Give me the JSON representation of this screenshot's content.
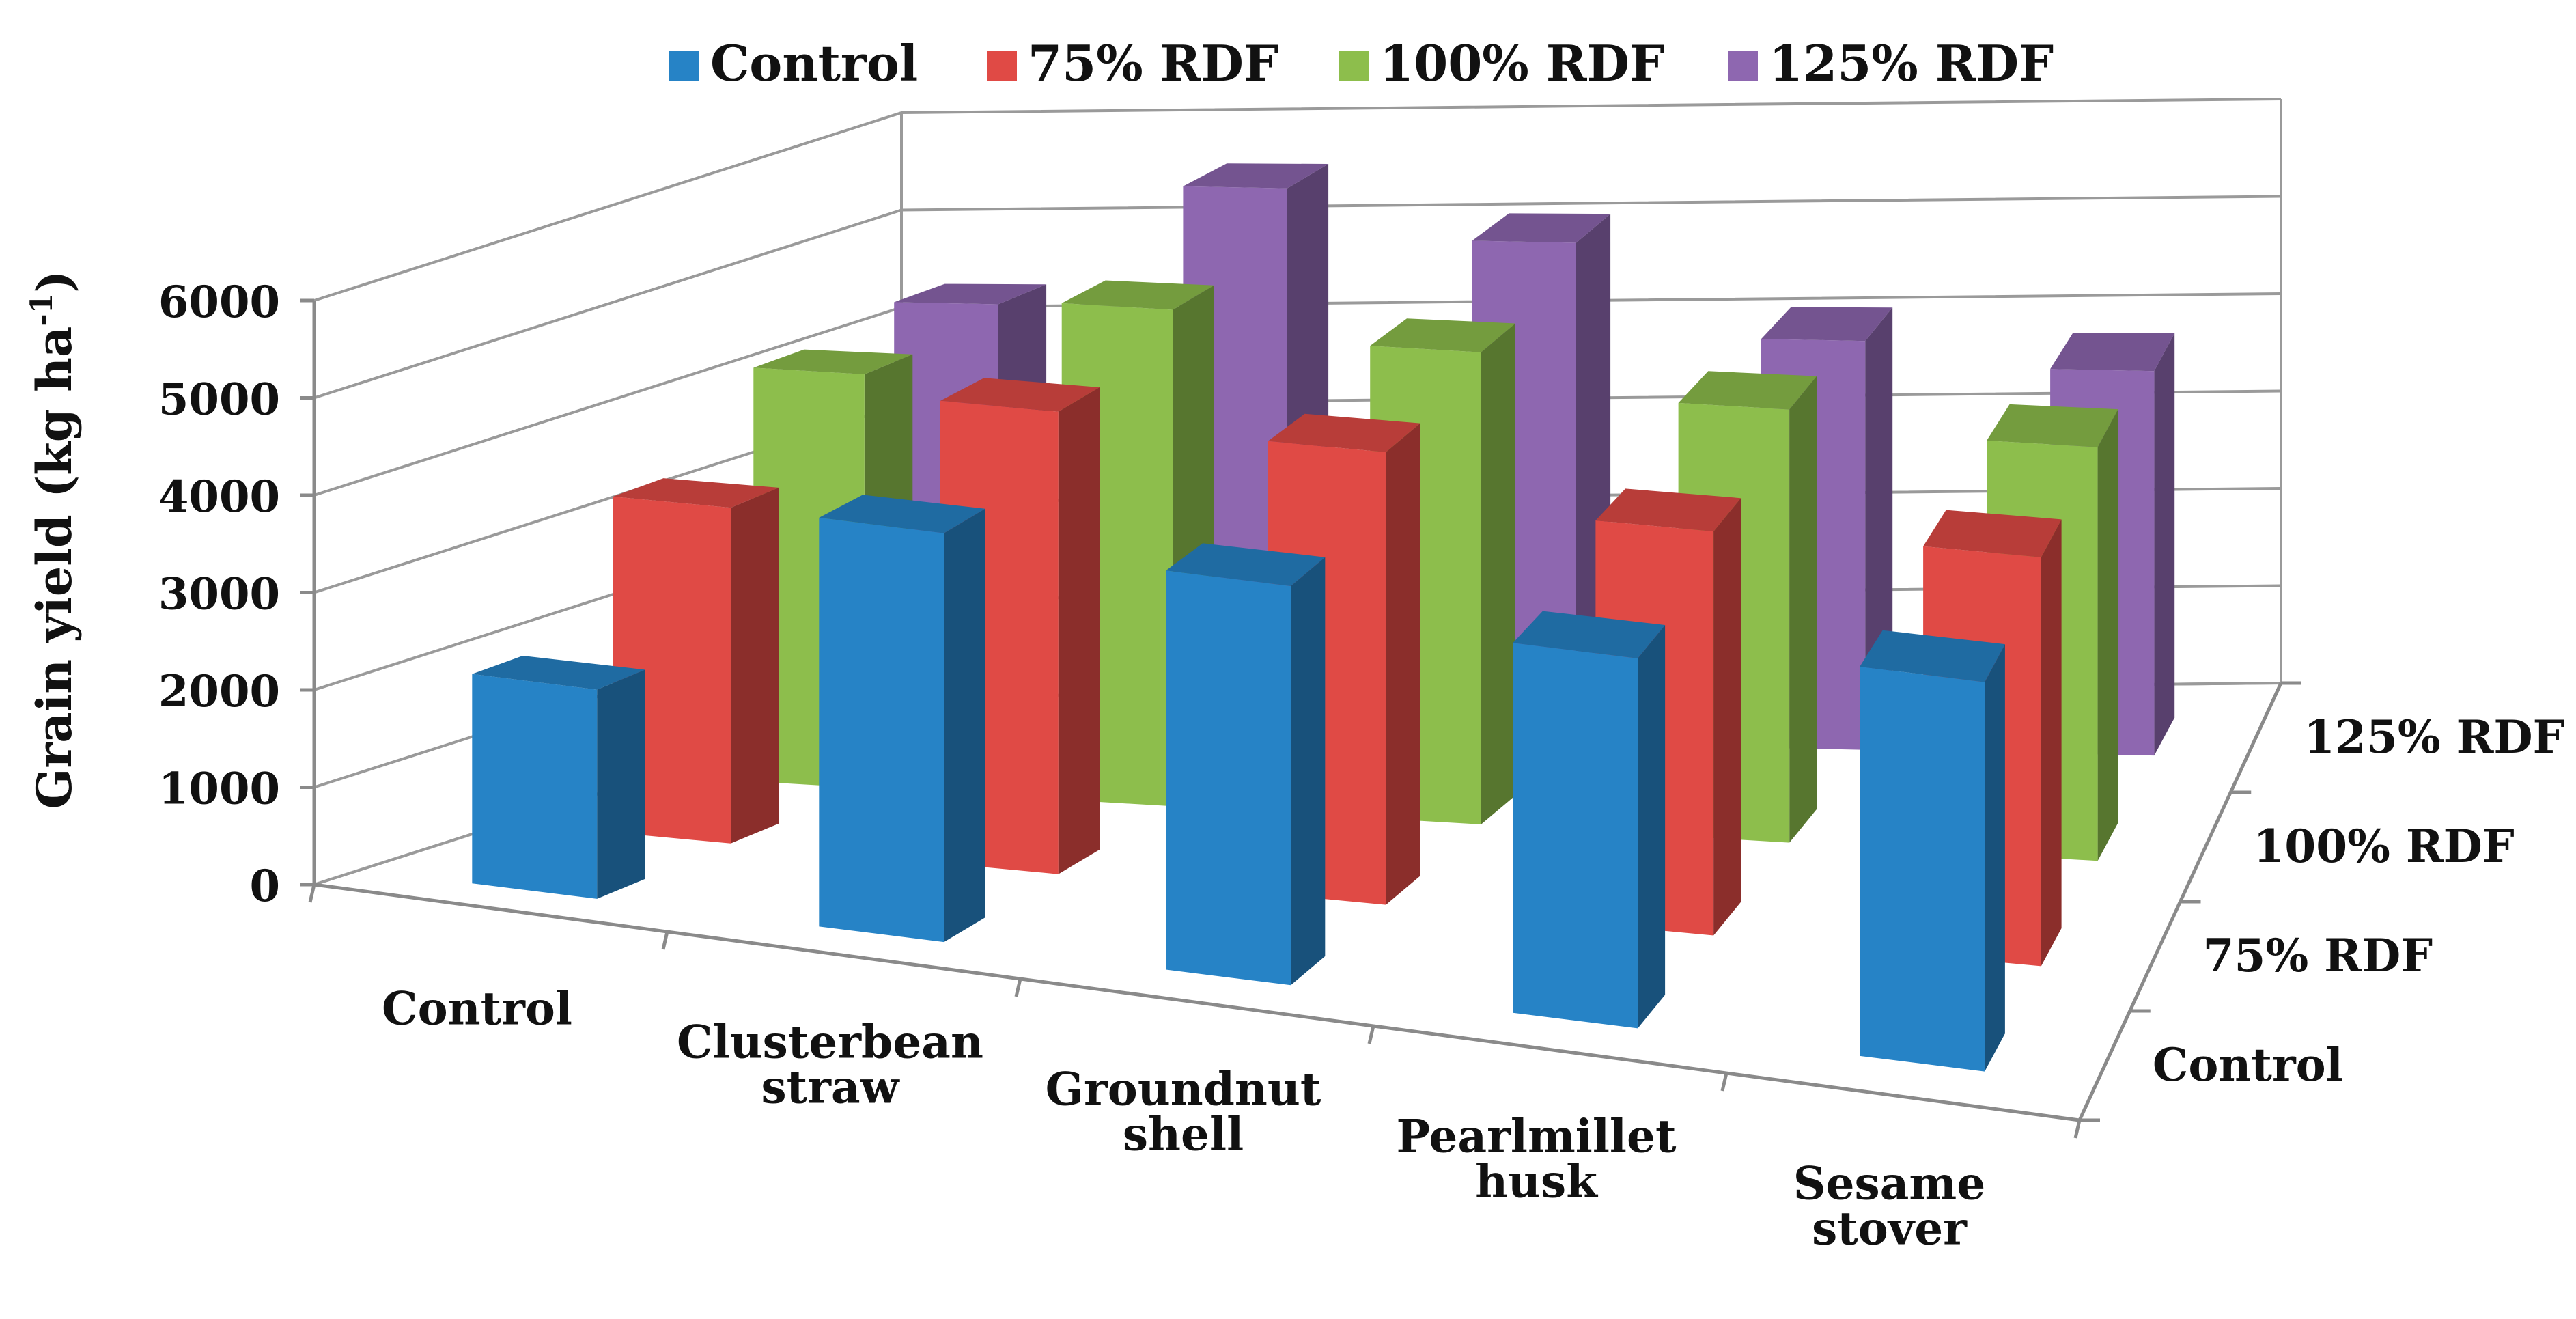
{
  "chart_data": {
    "type": "bar3d",
    "title": "",
    "ylabel": "Grain yield (kg ha",
    "ylabel_sup": "-1",
    "ylabel_close": ")",
    "ylim": [
      0,
      6000
    ],
    "yticks": [
      "0",
      "1000",
      "2000",
      "3000",
      "4000",
      "5000",
      "6000"
    ],
    "categories": [
      "Control",
      "Clusterbean straw",
      "Groundnut shell",
      "Pearlmillet husk",
      "Sesame stover"
    ],
    "category_lines": [
      [
        "Control"
      ],
      [
        "Clusterbean",
        "straw"
      ],
      [
        "Groundnut",
        "shell"
      ],
      [
        "Pearlmillet",
        "husk"
      ],
      [
        "Sesame",
        "stover"
      ]
    ],
    "depth_labels": [
      "Control",
      "75% RDF",
      "100% RDF",
      "125% RDF"
    ],
    "legend_position": "top",
    "series": [
      {
        "name": "Control",
        "color": "#2683C6",
        "values": [
          2150,
          4200,
          4100,
          3800,
          4000
        ]
      },
      {
        "name": "75% RDF",
        "color": "#E04A45",
        "values": [
          3450,
          4750,
          4650,
          4150,
          4200
        ]
      },
      {
        "name": "100% RDF",
        "color": "#8DBE4C",
        "values": [
          4250,
          5100,
          4850,
          4450,
          4250
        ]
      },
      {
        "name": "125% RDF",
        "color": "#8E67B0",
        "values": [
          4400,
          5650,
          5150,
          4200,
          3950
        ]
      }
    ]
  }
}
